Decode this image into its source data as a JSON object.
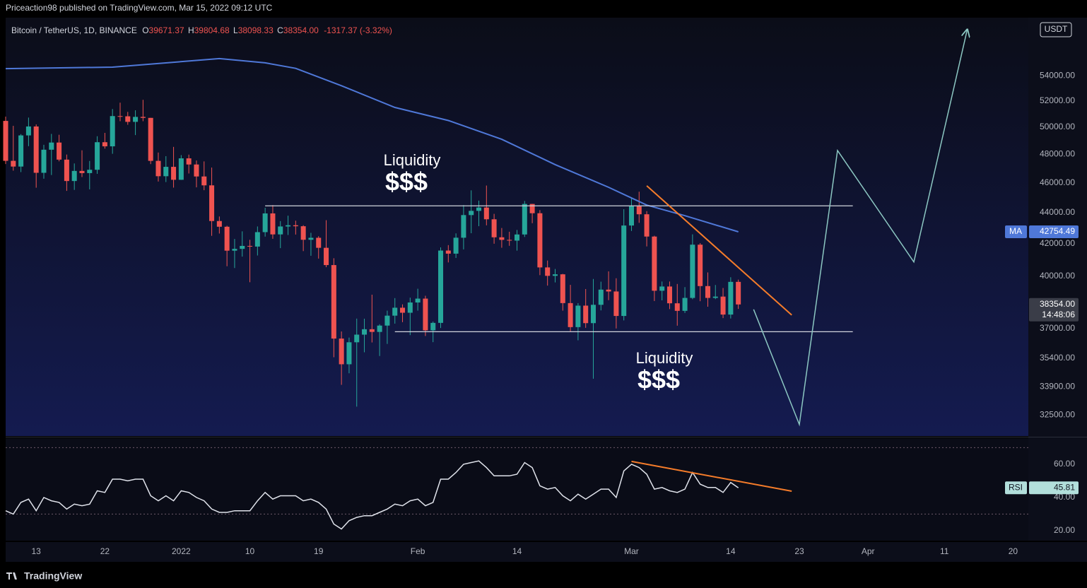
{
  "header": {
    "attribution": "Priceaction98 published on TradingView.com, Mar 15, 2022 09:12 UTC"
  },
  "footer": {
    "brand": "TradingView"
  },
  "chart_data": {
    "type": "candlestick",
    "legend": {
      "symbol": "Bitcoin / TetherUS, 1D, BINANCE",
      "fields": [
        {
          "key": "O",
          "value": "39671.37"
        },
        {
          "key": "H",
          "value": "39804.68"
        },
        {
          "key": "L",
          "value": "38098.33"
        },
        {
          "key": "C",
          "value": "38354.00"
        }
      ],
      "change": "-1317.37 (-3.32%)"
    },
    "currency": "USDT",
    "log_scale": true,
    "up_color": "#26a69a",
    "down_color": "#ef5350",
    "x": [
      "2021-12-09",
      "2021-12-10",
      "2021-12-11",
      "2021-12-12",
      "2021-12-13",
      "2021-12-14",
      "2021-12-15",
      "2021-12-16",
      "2021-12-17",
      "2021-12-18",
      "2021-12-19",
      "2021-12-20",
      "2021-12-21",
      "2021-12-22",
      "2021-12-23",
      "2021-12-24",
      "2021-12-25",
      "2021-12-26",
      "2021-12-27",
      "2021-12-28",
      "2021-12-29",
      "2021-12-30",
      "2021-12-31",
      "2022-01-01",
      "2022-01-02",
      "2022-01-03",
      "2022-01-04",
      "2022-01-05",
      "2022-01-06",
      "2022-01-07",
      "2022-01-08",
      "2022-01-09",
      "2022-01-10",
      "2022-01-11",
      "2022-01-12",
      "2022-01-13",
      "2022-01-14",
      "2022-01-15",
      "2022-01-16",
      "2022-01-17",
      "2022-01-18",
      "2022-01-19",
      "2022-01-20",
      "2022-01-21",
      "2022-01-22",
      "2022-01-23",
      "2022-01-24",
      "2022-01-25",
      "2022-01-26",
      "2022-01-27",
      "2022-01-28",
      "2022-01-29",
      "2022-01-30",
      "2022-01-31",
      "2022-02-01",
      "2022-02-02",
      "2022-02-03",
      "2022-02-04",
      "2022-02-05",
      "2022-02-06",
      "2022-02-07",
      "2022-02-08",
      "2022-02-09",
      "2022-02-10",
      "2022-02-11",
      "2022-02-12",
      "2022-02-13",
      "2022-02-14",
      "2022-02-15",
      "2022-02-16",
      "2022-02-17",
      "2022-02-18",
      "2022-02-19",
      "2022-02-20",
      "2022-02-21",
      "2022-02-22",
      "2022-02-23",
      "2022-02-24",
      "2022-02-25",
      "2022-02-26",
      "2022-02-27",
      "2022-02-28",
      "2022-03-01",
      "2022-03-02",
      "2022-03-03",
      "2022-03-04",
      "2022-03-05",
      "2022-03-06",
      "2022-03-07",
      "2022-03-08",
      "2022-03-09",
      "2022-03-10",
      "2022-03-11",
      "2022-03-12",
      "2022-03-13",
      "2022-03-14",
      "2022-03-15"
    ],
    "open": [
      50471,
      47545,
      47140,
      49389,
      50053,
      46702,
      48343,
      48864,
      47632,
      46131,
      46834,
      46681,
      46914,
      48889,
      48588,
      50838,
      50820,
      50400,
      50775,
      50701,
      47543,
      46464,
      47120,
      46216,
      47722,
      47286,
      46446,
      45833,
      43451,
      43082,
      41566,
      41679,
      41864,
      41822,
      42735,
      43949,
      42591,
      43099,
      43177,
      43114,
      42250,
      42375,
      41745,
      40681,
      36445,
      35071,
      36244,
      36660,
      36958,
      36809,
      37160,
      37716,
      38166,
      37881,
      38466,
      38690,
      36896,
      37311,
      41574,
      41382,
      42380,
      43840,
      44118,
      44338,
      43565,
      42407,
      42244,
      42197,
      42586,
      44575,
      43961,
      40538,
      40030,
      40122,
      38431,
      37075,
      38286,
      37296,
      38333,
      39214,
      39105,
      37699,
      43160,
      44421,
      43892,
      42454,
      39148,
      39397,
      38420,
      37988,
      38730,
      41941,
      39422,
      38730,
      38807,
      37777,
      39671.37
    ],
    "high": [
      50797,
      50100,
      49485,
      50724,
      50205,
      48700,
      49500,
      49436,
      47995,
      47360,
      48300,
      47537,
      49328,
      49576,
      51375,
      51868,
      51156,
      51280,
      52088,
      50704,
      48139,
      47879,
      48548,
      47954,
      47990,
      47570,
      47505,
      47070,
      43748,
      43145,
      42300,
      42786,
      42248,
      43100,
      44322,
      44500,
      43448,
      43800,
      43475,
      43180,
      42691,
      42478,
      43505,
      41100,
      36835,
      36499,
      37550,
      37545,
      38919,
      37234,
      38000,
      38720,
      38359,
      38744,
      39265,
      38855,
      37387,
      41772,
      41913,
      42656,
      44500,
      45492,
      44798,
      45821,
      43920,
      43000,
      42760,
      42876,
      44775,
      44582,
      44164,
      40959,
      40444,
      40150,
      39494,
      38429,
      39249,
      39843,
      39683,
      40300,
      39886,
      44225,
      44949,
      45400,
      44102,
      42506,
      39693,
      39693,
      39547,
      39362,
      42594,
      42039,
      40236,
      39486,
      39310,
      39947,
      39804.68
    ],
    "low": [
      47320,
      46852,
      46751,
      48600,
      45672,
      46290,
      46547,
      47511,
      45456,
      45522,
      46406,
      45558,
      46630,
      48421,
      48049,
      50450,
      50181,
      49412,
      50450,
      47313,
      46096,
      46060,
      45678,
      46208,
      46654,
      45697,
      45502,
      42500,
      42645,
      40610,
      40501,
      41200,
      39650,
      41268,
      42450,
      42311,
      41725,
      42555,
      42581,
      41540,
      41250,
      41076,
      40553,
      35440,
      34008,
      34601,
      32917,
      35705,
      36234,
      35507,
      36155,
      37268,
      37351,
      36632,
      38000,
      36586,
      36250,
      37026,
      40843,
      41116,
      41645,
      42666,
      43117,
      43172,
      42000,
      41748,
      41870,
      41570,
      42427,
      43310,
      40073,
      39450,
      39639,
      38000,
      36800,
      36350,
      37036,
      34322,
      38014,
      38600,
      37000,
      37450,
      42809,
      43334,
      41832,
      38550,
      38588,
      38088,
      37155,
      37867,
      38656,
      38540,
      38223,
      38660,
      37578,
      37555,
      38098.33
    ],
    "close": [
      47545,
      47140,
      49389,
      50053,
      46702,
      48343,
      48864,
      47632,
      46131,
      46834,
      46681,
      46914,
      48889,
      48588,
      50838,
      50820,
      50400,
      50775,
      50701,
      47543,
      46464,
      47120,
      46216,
      47722,
      47286,
      46446,
      45833,
      43451,
      43082,
      41566,
      41679,
      41864,
      41822,
      42735,
      43949,
      42591,
      43099,
      43177,
      43114,
      42250,
      42375,
      41745,
      40681,
      36445,
      35071,
      36244,
      36660,
      36958,
      36809,
      37160,
      37716,
      38166,
      37881,
      38466,
      38690,
      36896,
      37311,
      41574,
      41382,
      42380,
      43840,
      44118,
      44338,
      43565,
      42407,
      42244,
      42197,
      42586,
      44575,
      43961,
      40538,
      40030,
      40122,
      38431,
      37075,
      38286,
      37296,
      38333,
      39214,
      39105,
      37699,
      43160,
      44421,
      43892,
      42454,
      39148,
      39397,
      38420,
      37988,
      38730,
      41941,
      39422,
      38730,
      38807,
      37777,
      39671.37,
      38354
    ],
    "series": [
      {
        "name": "MA",
        "color": "#4f78d8",
        "x": [
          "2021-12-09",
          "2021-12-23",
          "2022-01-06",
          "2022-01-12",
          "2022-01-16",
          "2022-01-22",
          "2022-01-29",
          "2022-02-05",
          "2022-02-12",
          "2022-02-19",
          "2022-02-26",
          "2022-03-03",
          "2022-03-08",
          "2022-03-15"
        ],
        "values": [
          54580,
          54700,
          55400,
          55050,
          54600,
          53200,
          51500,
          50500,
          49100,
          47280,
          45700,
          44500,
          43800,
          42754.49
        ]
      }
    ],
    "last_price_label": "38354.00",
    "countdown": "14:48:06",
    "xlim": [
      "2021-12-09",
      "2022-04-22"
    ],
    "ylim": [
      31500,
      58900
    ],
    "yticks": [
      {
        "value": 54000,
        "label": "54000.00"
      },
      {
        "value": 52000,
        "label": "52000.00"
      },
      {
        "value": 50000,
        "label": "50000.00"
      },
      {
        "value": 48000,
        "label": "48000.00"
      },
      {
        "value": 46000,
        "label": "46000.00"
      },
      {
        "value": 44000,
        "label": "44000.00"
      },
      {
        "value": 42000,
        "label": "42000.00"
      },
      {
        "value": 40000,
        "label": "40000.00"
      },
      {
        "value": 37000,
        "label": "37000.00"
      },
      {
        "value": 35400,
        "label": "35400.00"
      },
      {
        "value": 33900,
        "label": "33900.00"
      },
      {
        "value": 32500,
        "label": "32500.00"
      }
    ],
    "xticks": [
      {
        "value": "2021-12-13",
        "label": "13"
      },
      {
        "value": "2021-12-22",
        "label": "22"
      },
      {
        "value": "2022-01-01",
        "label": "2022"
      },
      {
        "value": "2022-01-10",
        "label": "10"
      },
      {
        "value": "2022-01-19",
        "label": "19"
      },
      {
        "value": "2022-02-01",
        "label": "Feb"
      },
      {
        "value": "2022-02-14",
        "label": "14"
      },
      {
        "value": "2022-03-01",
        "label": "Mar"
      },
      {
        "value": "2022-03-14",
        "label": "14"
      },
      {
        "value": "2022-03-23",
        "label": "23"
      },
      {
        "value": "2022-04-01",
        "label": "Apr"
      },
      {
        "value": "2022-04-11",
        "label": "11"
      },
      {
        "value": "2022-04-20",
        "label": "20"
      }
    ],
    "annotations": [
      {
        "text": "Liquidity",
        "subtext": "$$$"
      },
      {
        "text": "Liquidity",
        "subtext": "$$$"
      }
    ],
    "drawings": [
      {
        "type": "horizontal",
        "color": "#d1d4dc",
        "y": 44450,
        "x": [
          "2022-01-12",
          "2022-03-30"
        ]
      },
      {
        "type": "horizontal",
        "color": "#d1d4dc",
        "y": 36820,
        "x": [
          "2022-01-29",
          "2022-03-30"
        ]
      },
      {
        "type": "trend",
        "color": "#f57c2a",
        "points": [
          {
            "x": "2022-03-03",
            "y": 45800
          },
          {
            "x": "2022-03-22",
            "y": 37750
          }
        ]
      },
      {
        "type": "path",
        "color": "#8cc7c2",
        "arrow": true,
        "points": [
          {
            "x": "2022-03-17",
            "y": 38070
          },
          {
            "x": "2022-03-23",
            "y": 32050
          },
          {
            "x": "2022-03-28",
            "y": 48290
          },
          {
            "x": "2022-04-07",
            "y": 40870
          },
          {
            "x": "2022-04-14",
            "y": 57870
          }
        ]
      }
    ],
    "rsi": {
      "name": "RSI",
      "color": "#e0e3eb",
      "label_color": "#b2dfdb",
      "values": [
        32,
        30,
        37,
        39,
        32,
        40,
        38,
        37,
        33,
        36,
        35,
        36,
        44,
        43,
        51,
        51,
        50,
        51,
        51,
        41,
        38,
        41,
        38,
        44,
        43,
        40,
        38,
        33,
        31,
        31,
        32,
        32,
        32,
        38,
        43,
        39,
        41,
        41,
        41,
        38,
        39,
        37,
        33,
        24,
        21,
        26,
        28,
        29,
        29,
        31,
        33,
        36,
        35,
        38,
        39,
        35,
        37,
        51,
        51,
        55,
        60,
        61,
        62,
        58,
        53,
        53,
        53,
        54,
        61,
        58,
        47,
        45,
        46,
        41,
        38,
        42,
        39,
        42,
        45,
        45,
        40,
        56,
        60,
        58,
        54,
        45,
        46,
        44,
        43,
        45,
        55,
        48,
        46,
        46,
        43,
        49,
        45.81
      ],
      "ylim": [
        14,
        75.7
      ],
      "yticks": [
        {
          "value": 60,
          "label": "60.00"
        },
        {
          "value": 40,
          "label": "40.00"
        },
        {
          "value": 20,
          "label": "20.00"
        }
      ],
      "bands": [
        30,
        70
      ],
      "drawings": [
        {
          "type": "trend",
          "color": "#f57c2a",
          "points": [
            {
              "x": "2022-03-01",
              "y": 61.7
            },
            {
              "x": "2022-03-22",
              "y": 43.8
            }
          ]
        }
      ]
    }
  }
}
